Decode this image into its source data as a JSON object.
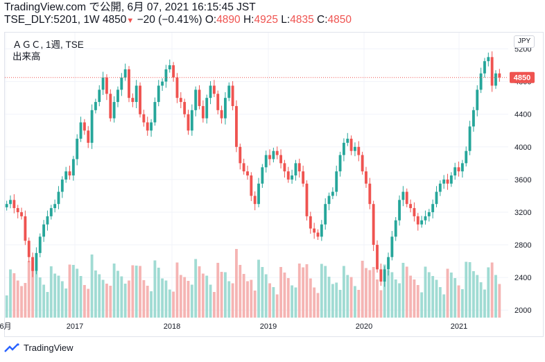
{
  "header": {
    "line1": "TradingView.com で公開, 6月 07, 2021 16:15:45 JST",
    "symbol": "TSE_DLY:5201, 1W 4850",
    "change_arrow": "▼",
    "change": "−20 (−0.41%)",
    "o_label": "O:",
    "o_value": "4890",
    "h_label": "H:",
    "h_value": "4925",
    "l_label": "L:",
    "l_value": "4835",
    "c_label": "C:",
    "c_value": "4850"
  },
  "legend": {
    "title": "ＡＧＣ, 1週, TSE",
    "volume_label": "出来高"
  },
  "currency_button": "JPY",
  "footer": {
    "brand": "TradingView"
  },
  "colors": {
    "up": "#26a69a",
    "down": "#ef5350",
    "up_volume": "#a0dbd3",
    "down_volume": "#f5b4b3",
    "grid": "#f0f3fa"
  },
  "chart_data": {
    "type": "candlestick",
    "x_tick_labels": [
      "6月",
      "2017",
      "2018",
      "2019",
      "2020",
      "2021"
    ],
    "y_tick_labels": [
      "2000",
      "2400",
      "2800",
      "3200",
      "3600",
      "4000",
      "4400",
      "4800",
      "5200"
    ],
    "ylim": [
      1900,
      5400
    ],
    "last_price_label": "4850",
    "last_price": 4850,
    "series_close": [
      3300,
      3350,
      3250,
      3200,
      3150,
      2850,
      2650,
      2480,
      2700,
      2900,
      3050,
      3150,
      3250,
      3300,
      3450,
      3600,
      3700,
      3650,
      3850,
      4100,
      4300,
      4200,
      4050,
      4450,
      4550,
      4700,
      4850,
      4650,
      4350,
      4550,
      4700,
      4850,
      4950,
      4600,
      4550,
      4750,
      4400,
      4300,
      4200,
      4300,
      4550,
      4750,
      4800,
      4950,
      5000,
      4850,
      4600,
      4550,
      4400,
      4200,
      4450,
      4700,
      4500,
      4350,
      4600,
      4750,
      4650,
      4450,
      4350,
      4600,
      4750,
      4500,
      4000,
      3800,
      3700,
      3650,
      3400,
      3300,
      3550,
      3750,
      3900,
      3850,
      3950,
      3900,
      3800,
      3700,
      3600,
      3650,
      3800,
      3700,
      3550,
      3150,
      3000,
      2950,
      2900,
      3050,
      3300,
      3400,
      3450,
      3700,
      3900,
      4050,
      4100,
      3950,
      4000,
      3900,
      3700,
      3550,
      3300,
      2800,
      2500,
      2350,
      2500,
      2650,
      2900,
      3100,
      3350,
      3450,
      3300,
      3250,
      3150,
      3050,
      3100,
      3150,
      3200,
      3300,
      3450,
      3550,
      3600,
      3550,
      3650,
      3750,
      3700,
      3800,
      3950,
      4250,
      4450,
      4700,
      4900,
      5050,
      5100,
      4750,
      4900,
      4850
    ],
    "annotations": []
  }
}
